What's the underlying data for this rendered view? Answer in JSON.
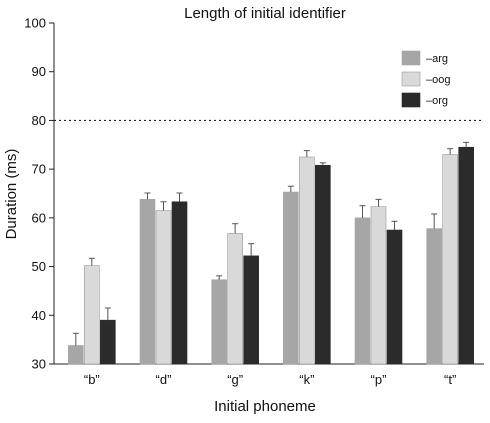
{
  "chart_data": {
    "type": "bar",
    "title": "Length of initial identifier",
    "xlabel": "Initial phoneme",
    "ylabel": "Duration (ms)",
    "ylim": [
      30,
      100
    ],
    "yticks": [
      30,
      40,
      50,
      60,
      70,
      80,
      90,
      100
    ],
    "categories": [
      "“b”",
      "“d”",
      "“g”",
      "“k”",
      "“p”",
      "“t”"
    ],
    "series": [
      {
        "name": "–arg",
        "color": "#a6a6a6",
        "values": [
          33.8,
          63.8,
          47.3,
          65.3,
          60.0,
          57.8
        ],
        "errors": [
          2.5,
          1.3,
          0.8,
          1.2,
          2.5,
          3.0
        ]
      },
      {
        "name": "–oog",
        "color": "#d9d9d9",
        "values": [
          50.2,
          61.5,
          56.8,
          72.5,
          62.3,
          73.0
        ],
        "errors": [
          1.5,
          1.8,
          2.0,
          1.3,
          1.5,
          1.2
        ]
      },
      {
        "name": "–org",
        "color": "#2b2b2b",
        "values": [
          39.0,
          63.3,
          52.2,
          70.8,
          57.5,
          74.5
        ],
        "errors": [
          2.5,
          1.8,
          2.5,
          0.5,
          1.8,
          1.0
        ]
      }
    ],
    "reference_line": {
      "y": 80,
      "style": "dotted"
    },
    "legend_position": "top-right",
    "grid": false,
    "error_bars": true
  }
}
